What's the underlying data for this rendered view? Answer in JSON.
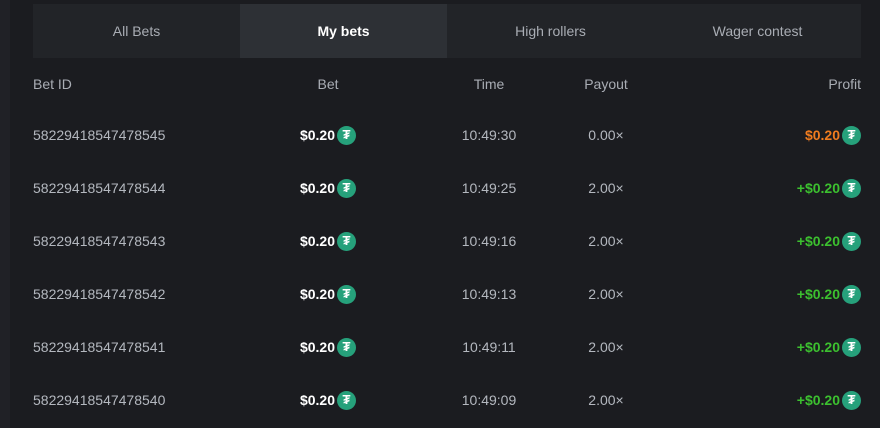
{
  "tabs": [
    {
      "label": "All Bets"
    },
    {
      "label": "My bets",
      "active": true
    },
    {
      "label": "High rollers"
    },
    {
      "label": "Wager contest"
    }
  ],
  "columns": {
    "id": "Bet ID",
    "bet": "Bet",
    "time": "Time",
    "payout": "Payout",
    "profit": "Profit"
  },
  "coin_icon": "tether-usdt-icon",
  "colors": {
    "loss": "#f07c1f",
    "win": "#3cc02f",
    "coin": "#26a17b"
  },
  "rows": [
    {
      "id": "58229418547478545",
      "bet": "$0.20",
      "time": "10:49:30",
      "payout": "0.00×",
      "profit": "$0.20",
      "status": "loss"
    },
    {
      "id": "58229418547478544",
      "bet": "$0.20",
      "time": "10:49:25",
      "payout": "2.00×",
      "profit": "+$0.20",
      "status": "win"
    },
    {
      "id": "58229418547478543",
      "bet": "$0.20",
      "time": "10:49:16",
      "payout": "2.00×",
      "profit": "+$0.20",
      "status": "win"
    },
    {
      "id": "58229418547478542",
      "bet": "$0.20",
      "time": "10:49:13",
      "payout": "2.00×",
      "profit": "+$0.20",
      "status": "win"
    },
    {
      "id": "58229418547478541",
      "bet": "$0.20",
      "time": "10:49:11",
      "payout": "2.00×",
      "profit": "+$0.20",
      "status": "win"
    },
    {
      "id": "58229418547478540",
      "bet": "$0.20",
      "time": "10:49:09",
      "payout": "2.00×",
      "profit": "+$0.20",
      "status": "win"
    }
  ]
}
